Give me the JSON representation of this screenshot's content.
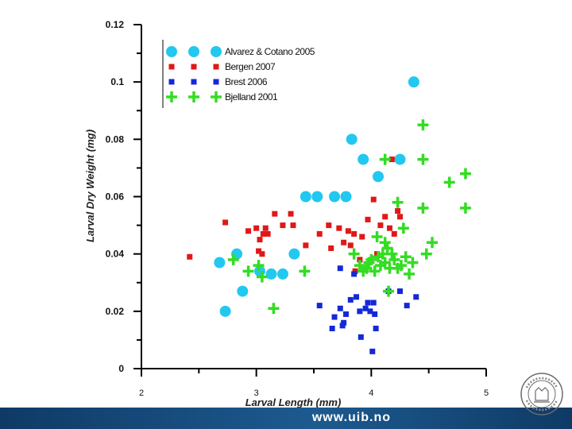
{
  "chart_data": {
    "type": "scatter",
    "xlabel": "Larval Length (mm)",
    "ylabel": "Larval Dry Weight (mg)",
    "xlim": [
      2,
      5
    ],
    "ylim": [
      0,
      0.12
    ],
    "xticks": [
      2,
      3,
      4,
      5
    ],
    "yticks": [
      0,
      0.02,
      0.04,
      0.06,
      0.08,
      0.1,
      0.12
    ],
    "xtick_labels": [
      "2",
      "3",
      "4",
      "5"
    ],
    "ytick_labels": [
      "0",
      "0.02",
      "0.04",
      "0.06",
      "0.08",
      "0.1",
      "0.12"
    ],
    "grid": false,
    "legend_position": "top-center",
    "series": [
      {
        "name": "Alvarez & Cotano 2005",
        "marker": "circle",
        "color": "#22c8f0",
        "points": [
          [
            4.37,
            0.1
          ],
          [
            3.83,
            0.08
          ],
          [
            3.93,
            0.073
          ],
          [
            4.25,
            0.073
          ],
          [
            4.06,
            0.067
          ],
          [
            3.43,
            0.06
          ],
          [
            3.53,
            0.06
          ],
          [
            3.68,
            0.06
          ],
          [
            3.78,
            0.06
          ],
          [
            2.68,
            0.037
          ],
          [
            2.83,
            0.04
          ],
          [
            3.03,
            0.034
          ],
          [
            3.13,
            0.033
          ],
          [
            3.23,
            0.033
          ],
          [
            3.33,
            0.04
          ],
          [
            2.73,
            0.02
          ],
          [
            2.88,
            0.027
          ]
        ]
      },
      {
        "name": "Bergen 2007",
        "marker": "square",
        "color": "#e01818",
        "points": [
          [
            2.42,
            0.039
          ],
          [
            2.73,
            0.051
          ],
          [
            2.93,
            0.048
          ],
          [
            3.0,
            0.049
          ],
          [
            3.03,
            0.045
          ],
          [
            3.06,
            0.047
          ],
          [
            3.08,
            0.049
          ],
          [
            3.1,
            0.047
          ],
          [
            3.02,
            0.041
          ],
          [
            3.05,
            0.04
          ],
          [
            3.16,
            0.054
          ],
          [
            3.23,
            0.05
          ],
          [
            3.3,
            0.054
          ],
          [
            3.32,
            0.05
          ],
          [
            3.43,
            0.043
          ],
          [
            3.55,
            0.047
          ],
          [
            3.63,
            0.05
          ],
          [
            3.72,
            0.049
          ],
          [
            3.76,
            0.044
          ],
          [
            3.8,
            0.048
          ],
          [
            3.85,
            0.047
          ],
          [
            3.92,
            0.046
          ],
          [
            3.97,
            0.052
          ],
          [
            4.02,
            0.059
          ],
          [
            4.08,
            0.05
          ],
          [
            4.12,
            0.053
          ],
          [
            4.16,
            0.049
          ],
          [
            4.18,
            0.073
          ],
          [
            4.2,
            0.047
          ],
          [
            4.23,
            0.055
          ],
          [
            4.25,
            0.053
          ],
          [
            3.82,
            0.043
          ],
          [
            4.05,
            0.04
          ],
          [
            3.9,
            0.038
          ],
          [
            3.86,
            0.034
          ],
          [
            3.65,
            0.042
          ]
        ]
      },
      {
        "name": "Brest 2006",
        "marker": "square",
        "color": "#1428d8",
        "points": [
          [
            3.73,
            0.035
          ],
          [
            3.85,
            0.033
          ],
          [
            3.55,
            0.022
          ],
          [
            3.66,
            0.014
          ],
          [
            3.68,
            0.018
          ],
          [
            3.73,
            0.021
          ],
          [
            3.75,
            0.015
          ],
          [
            3.76,
            0.016
          ],
          [
            3.78,
            0.019
          ],
          [
            3.82,
            0.024
          ],
          [
            3.87,
            0.025
          ],
          [
            3.9,
            0.02
          ],
          [
            3.95,
            0.021
          ],
          [
            3.97,
            0.023
          ],
          [
            3.99,
            0.02
          ],
          [
            4.02,
            0.023
          ],
          [
            4.03,
            0.019
          ],
          [
            3.91,
            0.011
          ],
          [
            4.01,
            0.006
          ],
          [
            4.15,
            0.027
          ],
          [
            4.25,
            0.027
          ],
          [
            4.31,
            0.022
          ],
          [
            4.39,
            0.025
          ],
          [
            4.04,
            0.014
          ]
        ]
      },
      {
        "name": "Bjelland 2001",
        "marker": "plus",
        "color": "#33dd22",
        "points": [
          [
            4.45,
            0.085
          ],
          [
            4.12,
            0.073
          ],
          [
            4.45,
            0.073
          ],
          [
            4.82,
            0.068
          ],
          [
            4.68,
            0.065
          ],
          [
            4.23,
            0.058
          ],
          [
            4.45,
            0.056
          ],
          [
            4.82,
            0.056
          ],
          [
            4.28,
            0.049
          ],
          [
            4.05,
            0.046
          ],
          [
            4.53,
            0.044
          ],
          [
            2.8,
            0.038
          ],
          [
            2.93,
            0.034
          ],
          [
            3.02,
            0.036
          ],
          [
            3.05,
            0.032
          ],
          [
            3.15,
            0.021
          ],
          [
            3.42,
            0.034
          ],
          [
            3.85,
            0.04
          ],
          [
            3.9,
            0.036
          ],
          [
            3.93,
            0.034
          ],
          [
            3.96,
            0.035
          ],
          [
            3.98,
            0.037
          ],
          [
            4.0,
            0.038
          ],
          [
            4.03,
            0.034
          ],
          [
            4.06,
            0.039
          ],
          [
            4.08,
            0.036
          ],
          [
            4.1,
            0.04
          ],
          [
            4.12,
            0.037
          ],
          [
            4.14,
            0.042
          ],
          [
            4.16,
            0.035
          ],
          [
            4.18,
            0.04
          ],
          [
            4.2,
            0.038
          ],
          [
            4.23,
            0.035
          ],
          [
            4.26,
            0.036
          ],
          [
            4.3,
            0.039
          ],
          [
            4.33,
            0.033
          ],
          [
            4.36,
            0.037
          ],
          [
            4.48,
            0.04
          ],
          [
            4.15,
            0.027
          ],
          [
            4.12,
            0.044
          ]
        ]
      }
    ]
  },
  "footer": {
    "url": "www.uib.no"
  },
  "seal_label": "UNIVERSITAS BERGENSIS"
}
